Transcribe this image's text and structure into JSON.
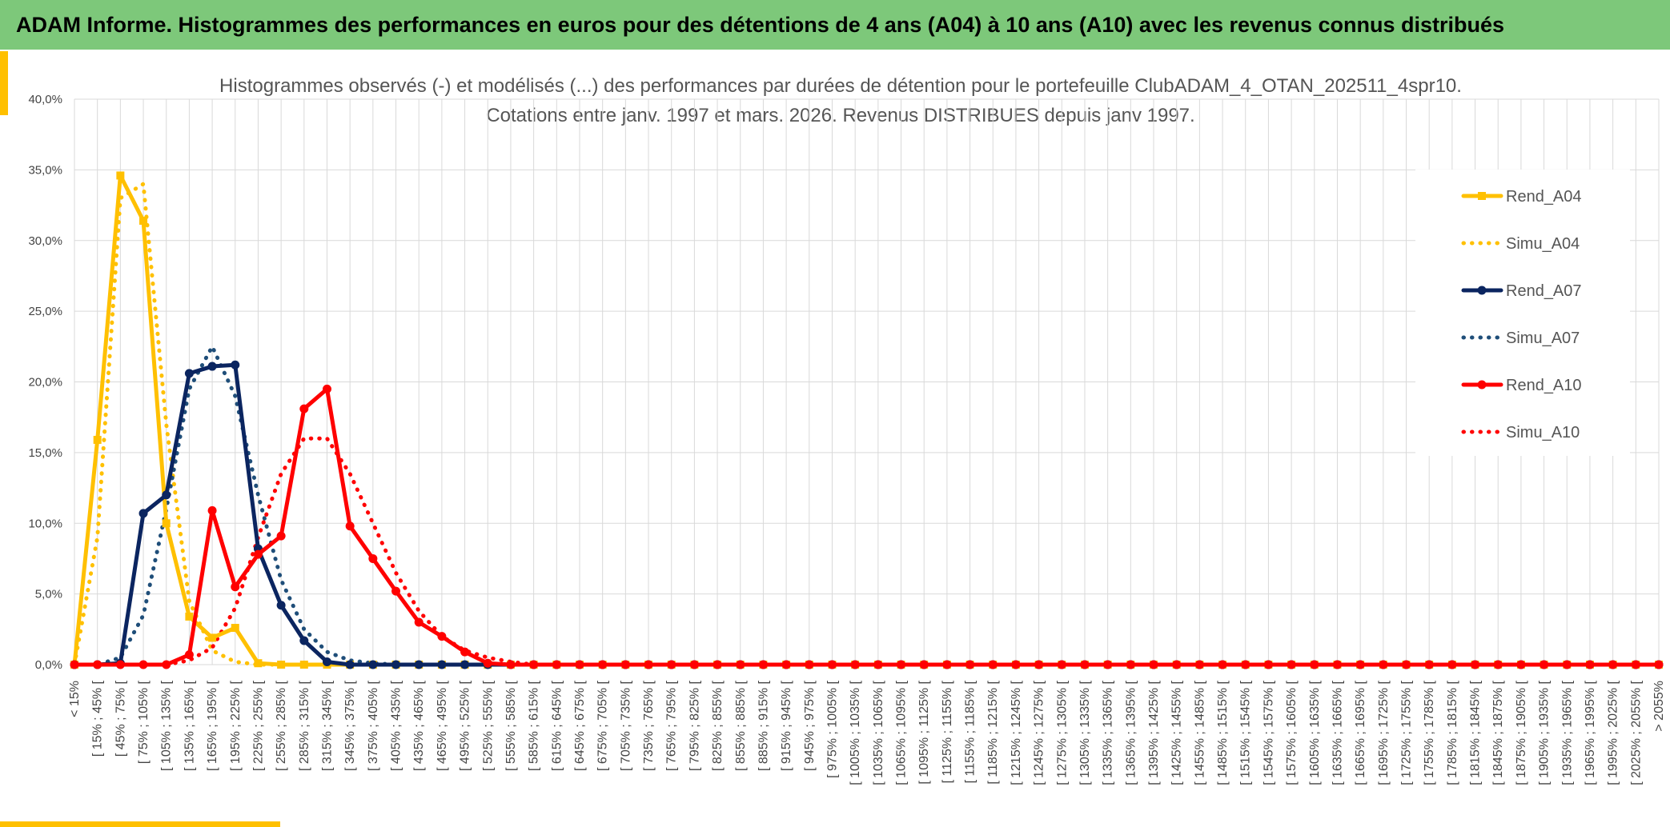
{
  "header": {
    "title": "ADAM Informe. Histogrammes des performances en euros pour des détentions de 4 ans (A04) à 10 ans (A10) avec les revenus connus distribués"
  },
  "chart_data": {
    "type": "line",
    "title": "Histogrammes observés (-) et modélisés (...) des performances par durées de détention pour le portefeuille ClubADAM_4_OTAN_202511_4spr10.",
    "subtitle": "Cotations entre janv. 1997 et mars. 2026. Revenus DISTRIBUES depuis janv 1997.",
    "categories": [
      "< 15%",
      "[ 15% ; 45% [",
      "[ 45% ; 75% [",
      "[ 75% ; 105% [",
      "[ 105% ; 135% [",
      "[ 135% ; 165% [",
      "[ 165% ; 195% [",
      "[ 195% ; 225% [",
      "[ 225% ; 255% [",
      "[ 255% ; 285% [",
      "[ 285% ; 315% [",
      "[ 315% ; 345% [",
      "[ 345% ; 375% [",
      "[ 375% ; 405% [",
      "[ 405% ; 435% [",
      "[ 435% ; 465% [",
      "[ 465% ; 495% [",
      "[ 495% ; 525% [",
      "[ 525% ; 555% [",
      "[ 555% ; 585% [",
      "[ 585% ; 615% [",
      "[ 615% ; 645% [",
      "[ 645% ; 675% [",
      "[ 675% ; 705% [",
      "[ 705% ; 735% [",
      "[ 735% ; 765% [",
      "[ 765% ; 795% [",
      "[ 795% ; 825% [",
      "[ 825% ; 855% [",
      "[ 855% ; 885% [",
      "[ 885% ; 915% [",
      "[ 915% ; 945% [",
      "[ 945% ; 975% [",
      "[ 975% ; 1005% [",
      "[ 1005% ; 1035% [",
      "[ 1035% ; 1065% [",
      "[ 1065% ; 1095% [",
      "[ 1095% ; 1125% [",
      "[ 1125% ; 1155% [",
      "[ 1155% ; 1185% [",
      "[ 1185% ; 1215% [",
      "[ 1215% ; 1245% [",
      "[ 1245% ; 1275% [",
      "[ 1275% ; 1305% [",
      "[ 1305% ; 1335% [",
      "[ 1335% ; 1365% [",
      "[ 1365% ; 1395% [",
      "[ 1395% ; 1425% [",
      "[ 1425% ; 1455% [",
      "[ 1455% ; 1485% [",
      "[ 1485% ; 1515% [",
      "[ 1515% ; 1545% [",
      "[ 1545% ; 1575% [",
      "[ 1575% ; 1605% [",
      "[ 1605% ; 1635% [",
      "[ 1635% ; 1665% [",
      "[ 1665% ; 1695% [",
      "[ 1695% ; 1725% [",
      "[ 1725% ; 1755% [",
      "[ 1755% ; 1785% [",
      "[ 1785% ; 1815% [",
      "[ 1815% ; 1845% [",
      "[ 1845% ; 1875% [",
      "[ 1875% ; 1905% [",
      "[ 1905% ; 1935% [",
      "[ 1935% ; 1965% [",
      "[ 1965% ; 1995% [",
      "[ 1995% ; 2025% [",
      "[ 2025% ; 2055% [",
      "> 2055%"
    ],
    "series": [
      {
        "name": "Rend_A04",
        "color": "#FFC000",
        "style": "solid",
        "marker": "square",
        "values": [
          0,
          15.9,
          34.6,
          31.4,
          10,
          3.4,
          1.9,
          2.6,
          0.1,
          0,
          0,
          0,
          0,
          0,
          0,
          0,
          0,
          0,
          0,
          0,
          0,
          0,
          0,
          0,
          0,
          0,
          0,
          0,
          0,
          0,
          0,
          0,
          0,
          0,
          0,
          0,
          0,
          0,
          0,
          0,
          0,
          0,
          0,
          0,
          0,
          0,
          0,
          0,
          0,
          0,
          0,
          0,
          0,
          0,
          0,
          0,
          0,
          0,
          0,
          0,
          0,
          0,
          0,
          0,
          0,
          0,
          0,
          0,
          0,
          0
        ]
      },
      {
        "name": "Simu_A04",
        "color": "#FFC000",
        "style": "dotted",
        "values": [
          0,
          9,
          33,
          34,
          17,
          4.5,
          1,
          0.2,
          0,
          0,
          0,
          0,
          0,
          0,
          0,
          0,
          0,
          0,
          0,
          0,
          0,
          0,
          0,
          0,
          0,
          0,
          0,
          0,
          0,
          0,
          0,
          0,
          0,
          0,
          0,
          0,
          0,
          0,
          0,
          0,
          0,
          0,
          0,
          0,
          0,
          0,
          0,
          0,
          0,
          0,
          0,
          0,
          0,
          0,
          0,
          0,
          0,
          0,
          0,
          0,
          0,
          0,
          0,
          0,
          0,
          0,
          0,
          0,
          0,
          0
        ]
      },
      {
        "name": "Rend_A07",
        "color": "#0B2560",
        "style": "solid",
        "marker": "circle",
        "values": [
          0,
          0,
          0.1,
          10.7,
          12,
          20.6,
          21.1,
          21.2,
          8.2,
          4.2,
          1.7,
          0.2,
          0,
          0,
          0,
          0,
          0,
          0,
          0,
          0,
          0,
          0,
          0,
          0,
          0,
          0,
          0,
          0,
          0,
          0,
          0,
          0,
          0,
          0,
          0,
          0,
          0,
          0,
          0,
          0,
          0,
          0,
          0,
          0,
          0,
          0,
          0,
          0,
          0,
          0,
          0,
          0,
          0,
          0,
          0,
          0,
          0,
          0,
          0,
          0,
          0,
          0,
          0,
          0,
          0,
          0,
          0,
          0,
          0,
          0
        ]
      },
      {
        "name": "Simu_A07",
        "color": "#1F4E79",
        "style": "dotted",
        "values": [
          0,
          0,
          0.5,
          3.5,
          11,
          19.5,
          22.5,
          19,
          12,
          6,
          2.5,
          0.9,
          0.3,
          0.1,
          0,
          0,
          0,
          0,
          0,
          0,
          0,
          0,
          0,
          0,
          0,
          0,
          0,
          0,
          0,
          0,
          0,
          0,
          0,
          0,
          0,
          0,
          0,
          0,
          0,
          0,
          0,
          0,
          0,
          0,
          0,
          0,
          0,
          0,
          0,
          0,
          0,
          0,
          0,
          0,
          0,
          0,
          0,
          0,
          0,
          0,
          0,
          0,
          0,
          0,
          0,
          0,
          0,
          0,
          0,
          0
        ]
      },
      {
        "name": "Rend_A10",
        "color": "#FF0000",
        "style": "solid",
        "marker": "circle",
        "values": [
          0,
          0,
          0,
          0,
          0,
          0.7,
          10.9,
          5.5,
          7.8,
          9.1,
          18.1,
          19.5,
          9.8,
          7.5,
          5.2,
          3,
          2,
          0.9,
          0.1,
          0,
          0,
          0,
          0,
          0,
          0,
          0,
          0,
          0,
          0,
          0,
          0,
          0,
          0,
          0,
          0,
          0,
          0,
          0,
          0,
          0,
          0,
          0,
          0,
          0,
          0,
          0,
          0,
          0,
          0,
          0,
          0,
          0,
          0,
          0,
          0,
          0,
          0,
          0,
          0,
          0,
          0,
          0,
          0,
          0,
          0,
          0,
          0,
          0,
          0,
          0
        ]
      },
      {
        "name": "Simu_A10",
        "color": "#FF0000",
        "style": "dotted",
        "values": [
          0,
          0,
          0,
          0,
          0,
          0.3,
          1.2,
          4,
          9,
          13.5,
          16,
          16,
          13.5,
          10,
          6.5,
          3.8,
          2,
          1,
          0.5,
          0.2,
          0,
          0,
          0,
          0,
          0,
          0,
          0,
          0,
          0,
          0,
          0,
          0,
          0,
          0,
          0,
          0,
          0,
          0,
          0,
          0,
          0,
          0,
          0,
          0,
          0,
          0,
          0,
          0,
          0,
          0,
          0,
          0,
          0,
          0,
          0,
          0,
          0,
          0,
          0,
          0,
          0,
          0,
          0,
          0,
          0,
          0,
          0,
          0,
          0,
          0
        ]
      }
    ],
    "ylim": [
      0,
      40
    ],
    "yticks": [
      {
        "value": 0,
        "label": "0,0%"
      },
      {
        "value": 5,
        "label": "5,0%"
      },
      {
        "value": 10,
        "label": "10,0%"
      },
      {
        "value": 15,
        "label": "15,0%"
      },
      {
        "value": 20,
        "label": "20,0%"
      },
      {
        "value": 25,
        "label": "25,0%"
      },
      {
        "value": 30,
        "label": "30,0%"
      },
      {
        "value": 35,
        "label": "35,0%"
      },
      {
        "value": 40,
        "label": "40,0%"
      }
    ],
    "grid": true,
    "legend": "right"
  }
}
